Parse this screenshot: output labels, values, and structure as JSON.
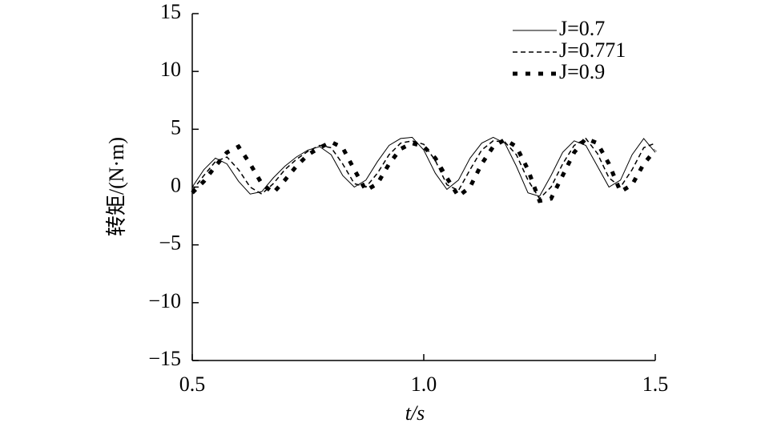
{
  "chart_data": {
    "type": "line",
    "x_label": "t/s",
    "y_label": "转矩/(N·m)",
    "x": [
      0.5,
      0.525,
      0.55,
      0.575,
      0.6,
      0.625,
      0.65,
      0.675,
      0.7,
      0.725,
      0.75,
      0.775,
      0.8,
      0.825,
      0.85,
      0.875,
      0.9,
      0.925,
      0.95,
      0.975,
      1.0,
      1.025,
      1.05,
      1.075,
      1.1,
      1.125,
      1.15,
      1.175,
      1.2,
      1.225,
      1.25,
      1.275,
      1.3,
      1.325,
      1.35,
      1.375,
      1.4,
      1.425,
      1.45,
      1.475,
      1.5
    ],
    "series": [
      {
        "name": "J=0.7",
        "color": "#000000",
        "line_style": "solid",
        "values": [
          0,
          1.5,
          2.5,
          2.0,
          0.5,
          -0.6,
          -0.4,
          0.8,
          1.8,
          2.6,
          3.2,
          3.5,
          2.8,
          1.0,
          0.0,
          0.6,
          2.2,
          3.6,
          4.2,
          4.3,
          3.2,
          1.2,
          -0.2,
          0.6,
          2.5,
          3.8,
          4.3,
          3.8,
          1.8,
          -0.5,
          -0.8,
          1.0,
          3.0,
          4.0,
          3.6,
          1.8,
          0.0,
          0.6,
          2.8,
          4.2,
          3.0
        ]
      },
      {
        "name": "J=0.771",
        "color": "#000000",
        "line_style": "dashed",
        "values": [
          -0.3,
          1.0,
          2.2,
          2.6,
          1.5,
          0.0,
          -0.6,
          0.3,
          1.5,
          2.4,
          3.1,
          3.6,
          3.4,
          2.0,
          0.3,
          0.0,
          1.2,
          2.8,
          3.8,
          4.0,
          3.7,
          2.3,
          0.2,
          -0.3,
          1.5,
          3.2,
          4.0,
          3.9,
          2.8,
          0.6,
          -1.0,
          0.0,
          2.0,
          3.6,
          4.2,
          2.9,
          0.8,
          0.0,
          1.5,
          3.4,
          3.8
        ]
      },
      {
        "name": "J=0.9",
        "color": "#000000",
        "line_style": "dotted",
        "values": [
          -0.5,
          0.5,
          1.8,
          3.0,
          3.5,
          2.0,
          0.3,
          -0.5,
          0.6,
          1.8,
          2.8,
          3.4,
          3.9,
          3.4,
          1.5,
          -0.3,
          0.3,
          2.0,
          3.3,
          3.8,
          3.5,
          2.5,
          0.8,
          -0.8,
          0.0,
          2.0,
          3.5,
          4.1,
          3.5,
          1.5,
          -1.2,
          -1.0,
          1.0,
          3.0,
          4.2,
          3.8,
          2.0,
          -0.4,
          0.2,
          2.0,
          3.2
        ]
      }
    ],
    "xlim": [
      0.5,
      1.5
    ],
    "xticks": [
      0.5,
      {
        "value": 1,
        "label": "1.0"
      },
      1.5
    ],
    "ylim": [
      -15,
      15
    ],
    "yticks": [
      {
        "value": -15,
        "label": "−15"
      },
      {
        "value": -10,
        "label": "−10"
      },
      {
        "value": -5,
        "label": "−5"
      },
      0,
      5,
      10,
      15
    ],
    "grid": false,
    "legend": "upper-right"
  }
}
